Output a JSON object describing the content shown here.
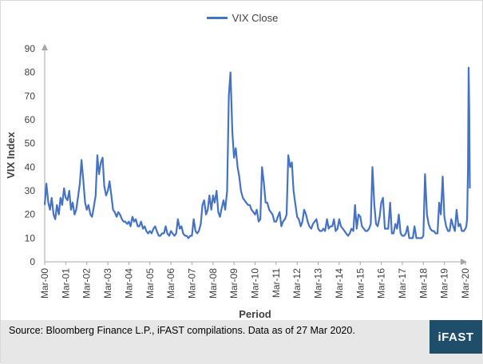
{
  "legend": {
    "label": "VIX Close",
    "color": "#4472c4"
  },
  "footer": {
    "source": "Source: Bloomberg Finance L.P., iFAST compilations. Data as of 27 Mar 2020.",
    "logo": "iFAST"
  },
  "chart_data": {
    "type": "line",
    "title": "",
    "xlabel": "Period",
    "ylabel": "VIX Index",
    "ylim": [
      0,
      90
    ],
    "yticks": [
      0,
      10,
      20,
      30,
      40,
      50,
      60,
      70,
      80,
      90
    ],
    "xlim": [
      2000.0,
      2020.0
    ],
    "xtick_labels": [
      "Mar-00",
      "Mar-01",
      "Mar-02",
      "Mar-03",
      "Mar-04",
      "Mar-05",
      "Mar-06",
      "Mar-07",
      "Mar-08",
      "Mar-09",
      "Mar-10",
      "Mar-11",
      "Mar-12",
      "Mar-13",
      "Mar-14",
      "Mar-15",
      "Mar-16",
      "Mar-17",
      "Mar-18",
      "Mar-19",
      "Mar-20"
    ],
    "grid": false,
    "legend_position": "top-center",
    "series": [
      {
        "name": "VIX Close",
        "color": "#4472c4",
        "points": [
          [
            2000.0,
            24
          ],
          [
            2000.08,
            33
          ],
          [
            2000.17,
            25
          ],
          [
            2000.25,
            22
          ],
          [
            2000.33,
            27
          ],
          [
            2000.42,
            20
          ],
          [
            2000.5,
            18
          ],
          [
            2000.58,
            24
          ],
          [
            2000.67,
            20
          ],
          [
            2000.75,
            27
          ],
          [
            2000.83,
            24
          ],
          [
            2000.92,
            31
          ],
          [
            2001.0,
            27
          ],
          [
            2001.08,
            26
          ],
          [
            2001.17,
            30
          ],
          [
            2001.25,
            22
          ],
          [
            2001.33,
            25
          ],
          [
            2001.42,
            20
          ],
          [
            2001.5,
            22
          ],
          [
            2001.58,
            27
          ],
          [
            2001.67,
            33
          ],
          [
            2001.75,
            43
          ],
          [
            2001.83,
            35
          ],
          [
            2001.92,
            25
          ],
          [
            2002.0,
            22
          ],
          [
            2002.08,
            24
          ],
          [
            2002.17,
            20
          ],
          [
            2002.25,
            19
          ],
          [
            2002.33,
            23
          ],
          [
            2002.42,
            28
          ],
          [
            2002.5,
            45
          ],
          [
            2002.58,
            37
          ],
          [
            2002.67,
            42
          ],
          [
            2002.75,
            44
          ],
          [
            2002.83,
            32
          ],
          [
            2002.92,
            28
          ],
          [
            2003.0,
            30
          ],
          [
            2003.08,
            34
          ],
          [
            2003.17,
            28
          ],
          [
            2003.25,
            22
          ],
          [
            2003.33,
            21
          ],
          [
            2003.42,
            19
          ],
          [
            2003.5,
            21
          ],
          [
            2003.58,
            20
          ],
          [
            2003.67,
            18
          ],
          [
            2003.75,
            17
          ],
          [
            2003.83,
            17
          ],
          [
            2003.92,
            16
          ],
          [
            2004.0,
            17
          ],
          [
            2004.08,
            15
          ],
          [
            2004.17,
            19
          ],
          [
            2004.25,
            17
          ],
          [
            2004.33,
            18
          ],
          [
            2004.42,
            15
          ],
          [
            2004.5,
            15
          ],
          [
            2004.58,
            17
          ],
          [
            2004.67,
            14
          ],
          [
            2004.75,
            15
          ],
          [
            2004.83,
            13
          ],
          [
            2004.92,
            12
          ],
          [
            2005.0,
            13
          ],
          [
            2005.08,
            12
          ],
          [
            2005.17,
            14
          ],
          [
            2005.25,
            15
          ],
          [
            2005.33,
            13
          ],
          [
            2005.42,
            11
          ],
          [
            2005.5,
            11
          ],
          [
            2005.58,
            12
          ],
          [
            2005.67,
            12
          ],
          [
            2005.75,
            15
          ],
          [
            2005.83,
            12
          ],
          [
            2005.92,
            11
          ],
          [
            2006.0,
            13
          ],
          [
            2006.08,
            12
          ],
          [
            2006.17,
            11
          ],
          [
            2006.25,
            12
          ],
          [
            2006.33,
            18
          ],
          [
            2006.42,
            14
          ],
          [
            2006.5,
            15
          ],
          [
            2006.58,
            12
          ],
          [
            2006.67,
            11
          ],
          [
            2006.75,
            11
          ],
          [
            2006.83,
            10
          ],
          [
            2006.92,
            11
          ],
          [
            2007.0,
            11
          ],
          [
            2007.08,
            18
          ],
          [
            2007.17,
            13
          ],
          [
            2007.25,
            12
          ],
          [
            2007.33,
            13
          ],
          [
            2007.42,
            16
          ],
          [
            2007.5,
            24
          ],
          [
            2007.58,
            26
          ],
          [
            2007.67,
            20
          ],
          [
            2007.75,
            22
          ],
          [
            2007.83,
            28
          ],
          [
            2007.92,
            22
          ],
          [
            2008.0,
            28
          ],
          [
            2008.08,
            25
          ],
          [
            2008.17,
            30
          ],
          [
            2008.25,
            21
          ],
          [
            2008.33,
            19
          ],
          [
            2008.42,
            23
          ],
          [
            2008.5,
            26
          ],
          [
            2008.58,
            22
          ],
          [
            2008.67,
            30
          ],
          [
            2008.75,
            70
          ],
          [
            2008.83,
            80
          ],
          [
            2008.92,
            55
          ],
          [
            2009.0,
            44
          ],
          [
            2009.08,
            48
          ],
          [
            2009.17,
            40
          ],
          [
            2009.25,
            36
          ],
          [
            2009.33,
            30
          ],
          [
            2009.42,
            27
          ],
          [
            2009.5,
            26
          ],
          [
            2009.58,
            25
          ],
          [
            2009.67,
            24
          ],
          [
            2009.75,
            24
          ],
          [
            2009.83,
            22
          ],
          [
            2009.92,
            21
          ],
          [
            2010.0,
            20
          ],
          [
            2010.08,
            22
          ],
          [
            2010.17,
            17
          ],
          [
            2010.25,
            18
          ],
          [
            2010.33,
            40
          ],
          [
            2010.42,
            33
          ],
          [
            2010.5,
            25
          ],
          [
            2010.58,
            25
          ],
          [
            2010.67,
            22
          ],
          [
            2010.75,
            21
          ],
          [
            2010.83,
            20
          ],
          [
            2010.92,
            17
          ],
          [
            2011.0,
            17
          ],
          [
            2011.08,
            19
          ],
          [
            2011.17,
            21
          ],
          [
            2011.25,
            15
          ],
          [
            2011.33,
            17
          ],
          [
            2011.42,
            18
          ],
          [
            2011.5,
            20
          ],
          [
            2011.58,
            45
          ],
          [
            2011.67,
            40
          ],
          [
            2011.75,
            42
          ],
          [
            2011.83,
            30
          ],
          [
            2011.92,
            24
          ],
          [
            2012.0,
            19
          ],
          [
            2012.08,
            18
          ],
          [
            2012.17,
            15
          ],
          [
            2012.25,
            17
          ],
          [
            2012.33,
            22
          ],
          [
            2012.42,
            20
          ],
          [
            2012.5,
            17
          ],
          [
            2012.58,
            15
          ],
          [
            2012.67,
            14
          ],
          [
            2012.75,
            16
          ],
          [
            2012.83,
            17
          ],
          [
            2012.92,
            18
          ],
          [
            2013.0,
            14
          ],
          [
            2013.08,
            13
          ],
          [
            2013.17,
            13
          ],
          [
            2013.25,
            14
          ],
          [
            2013.33,
            13
          ],
          [
            2013.42,
            18
          ],
          [
            2013.5,
            14
          ],
          [
            2013.58,
            15
          ],
          [
            2013.67,
            15
          ],
          [
            2013.75,
            18
          ],
          [
            2013.83,
            13
          ],
          [
            2013.92,
            14
          ],
          [
            2014.0,
            18
          ],
          [
            2014.08,
            15
          ],
          [
            2014.17,
            14
          ],
          [
            2014.25,
            13
          ],
          [
            2014.33,
            12
          ],
          [
            2014.42,
            11
          ],
          [
            2014.5,
            12
          ],
          [
            2014.58,
            14
          ],
          [
            2014.67,
            13
          ],
          [
            2014.75,
            24
          ],
          [
            2014.83,
            14
          ],
          [
            2014.92,
            20
          ],
          [
            2015.0,
            19
          ],
          [
            2015.08,
            15
          ],
          [
            2015.17,
            14
          ],
          [
            2015.25,
            13
          ],
          [
            2015.33,
            13
          ],
          [
            2015.42,
            14
          ],
          [
            2015.5,
            16
          ],
          [
            2015.58,
            40
          ],
          [
            2015.67,
            24
          ],
          [
            2015.75,
            16
          ],
          [
            2015.83,
            15
          ],
          [
            2015.92,
            19
          ],
          [
            2016.0,
            25
          ],
          [
            2016.08,
            27
          ],
          [
            2016.17,
            14
          ],
          [
            2016.25,
            14
          ],
          [
            2016.33,
            14
          ],
          [
            2016.42,
            25
          ],
          [
            2016.5,
            12
          ],
          [
            2016.58,
            12
          ],
          [
            2016.67,
            16
          ],
          [
            2016.75,
            14
          ],
          [
            2016.83,
            20
          ],
          [
            2016.92,
            12
          ],
          [
            2017.0,
            11
          ],
          [
            2017.08,
            11
          ],
          [
            2017.17,
            12
          ],
          [
            2017.25,
            15
          ],
          [
            2017.33,
            10
          ],
          [
            2017.42,
            10
          ],
          [
            2017.5,
            10
          ],
          [
            2017.58,
            15
          ],
          [
            2017.67,
            10
          ],
          [
            2017.75,
            10
          ],
          [
            2017.83,
            10
          ],
          [
            2017.92,
            10
          ],
          [
            2018.0,
            11
          ],
          [
            2018.08,
            37
          ],
          [
            2018.17,
            20
          ],
          [
            2018.25,
            16
          ],
          [
            2018.33,
            14
          ],
          [
            2018.42,
            13
          ],
          [
            2018.5,
            13
          ],
          [
            2018.58,
            12
          ],
          [
            2018.67,
            12
          ],
          [
            2018.75,
            25
          ],
          [
            2018.83,
            20
          ],
          [
            2018.92,
            36
          ],
          [
            2019.0,
            19
          ],
          [
            2019.08,
            15
          ],
          [
            2019.17,
            13
          ],
          [
            2019.25,
            13
          ],
          [
            2019.33,
            18
          ],
          [
            2019.42,
            15
          ],
          [
            2019.5,
            13
          ],
          [
            2019.58,
            22
          ],
          [
            2019.67,
            15
          ],
          [
            2019.75,
            16
          ],
          [
            2019.83,
            13
          ],
          [
            2019.92,
            13
          ],
          [
            2020.0,
            14
          ],
          [
            2020.04,
            15
          ],
          [
            2020.08,
            18
          ],
          [
            2020.12,
            40
          ],
          [
            2020.15,
            82
          ],
          [
            2020.18,
            66
          ],
          [
            2020.21,
            31
          ]
        ]
      }
    ]
  }
}
